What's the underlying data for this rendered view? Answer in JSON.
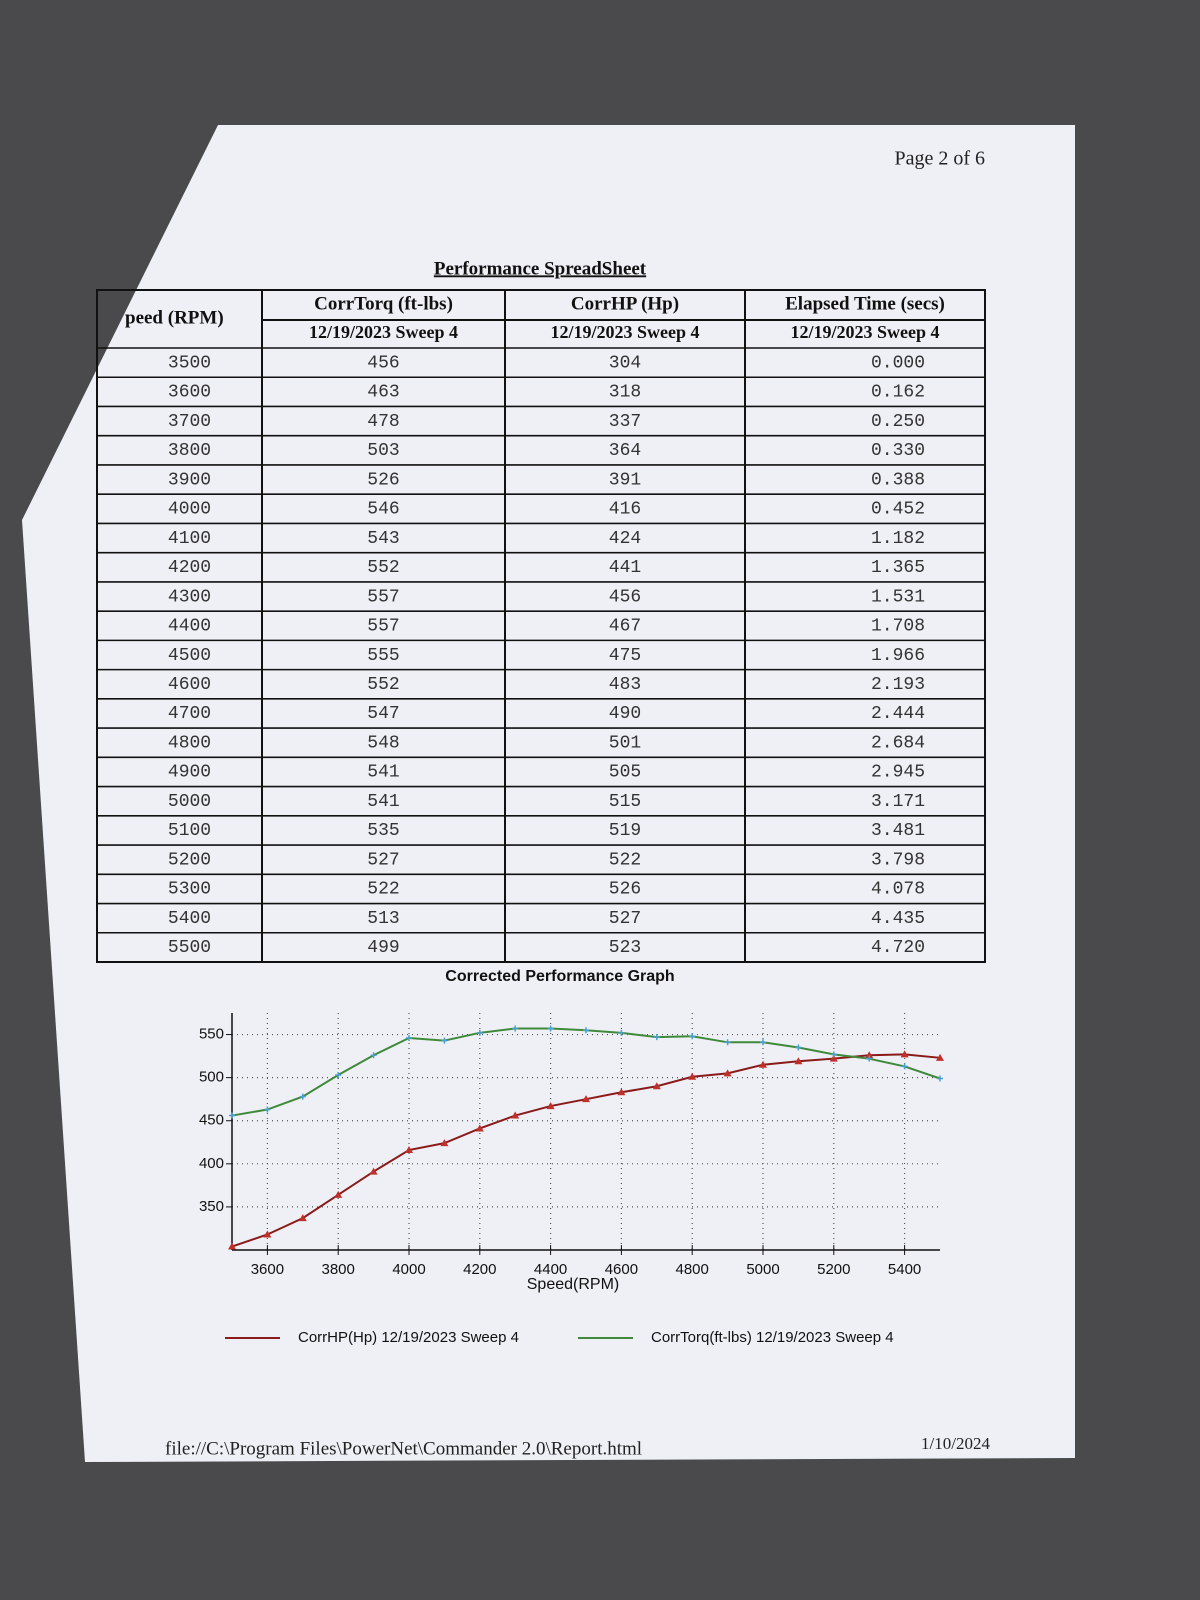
{
  "page_label": "Page 2 of 6",
  "table": {
    "title": "Performance SpreadSheet",
    "headers": [
      "peed (RPM)",
      "CorrTorq (ft-lbs)",
      "CorrHP (Hp)",
      "Elapsed Time (secs)"
    ],
    "subheaders": [
      "12/19/2023 Sweep 4",
      "12/19/2023 Sweep 4",
      "12/19/2023 Sweep 4"
    ],
    "rows": [
      [
        "3500",
        "456",
        "304",
        "0.000"
      ],
      [
        "3600",
        "463",
        "318",
        "0.162"
      ],
      [
        "3700",
        "478",
        "337",
        "0.250"
      ],
      [
        "3800",
        "503",
        "364",
        "0.330"
      ],
      [
        "3900",
        "526",
        "391",
        "0.388"
      ],
      [
        "4000",
        "546",
        "416",
        "0.452"
      ],
      [
        "4100",
        "543",
        "424",
        "1.182"
      ],
      [
        "4200",
        "552",
        "441",
        "1.365"
      ],
      [
        "4300",
        "557",
        "456",
        "1.531"
      ],
      [
        "4400",
        "557",
        "467",
        "1.708"
      ],
      [
        "4500",
        "555",
        "475",
        "1.966"
      ],
      [
        "4600",
        "552",
        "483",
        "2.193"
      ],
      [
        "4700",
        "547",
        "490",
        "2.444"
      ],
      [
        "4800",
        "548",
        "501",
        "2.684"
      ],
      [
        "4900",
        "541",
        "505",
        "2.945"
      ],
      [
        "5000",
        "541",
        "515",
        "3.171"
      ],
      [
        "5100",
        "535",
        "519",
        "3.481"
      ],
      [
        "5200",
        "527",
        "522",
        "3.798"
      ],
      [
        "5300",
        "522",
        "526",
        "4.078"
      ],
      [
        "5400",
        "513",
        "527",
        "4.435"
      ],
      [
        "5500",
        "499",
        "523",
        "4.720"
      ]
    ]
  },
  "chart_data": {
    "type": "line",
    "title": "Corrected Performance Graph",
    "x_label": "Speed(RPM)",
    "x": [
      3500,
      3600,
      3700,
      3800,
      3900,
      4000,
      4100,
      4200,
      4300,
      4400,
      4500,
      4600,
      4700,
      4800,
      4900,
      5000,
      5100,
      5200,
      5300,
      5400,
      5500
    ],
    "series": [
      {
        "name": "CorrHP(Hp) 12/19/2023 Sweep 4",
        "color": "#8b1a1a",
        "marker_color": "#c0302a",
        "values": [
          304,
          318,
          337,
          364,
          391,
          416,
          424,
          441,
          456,
          467,
          475,
          483,
          490,
          501,
          505,
          515,
          519,
          522,
          526,
          527,
          523
        ]
      },
      {
        "name": "CorrTorq(ft-lbs) 12/19/2023 Sweep 4",
        "color": "#3f8a3a",
        "marker_color": "#4aa0d0",
        "values": [
          456,
          463,
          478,
          503,
          526,
          546,
          543,
          552,
          557,
          557,
          555,
          552,
          547,
          548,
          541,
          541,
          535,
          527,
          522,
          513,
          499
        ]
      }
    ],
    "xlim": [
      3500,
      5500
    ],
    "xticks": [
      3600,
      3800,
      4000,
      4200,
      4400,
      4600,
      4800,
      5000,
      5200,
      5400
    ],
    "ylim": [
      300,
      575
    ],
    "yticks": [
      350,
      400,
      450,
      500,
      550
    ],
    "grid": true
  },
  "footer": {
    "path": "file://C:\\Program Files\\PowerNet\\Commander 2.0\\Report.html",
    "date": "1/10/2024"
  }
}
